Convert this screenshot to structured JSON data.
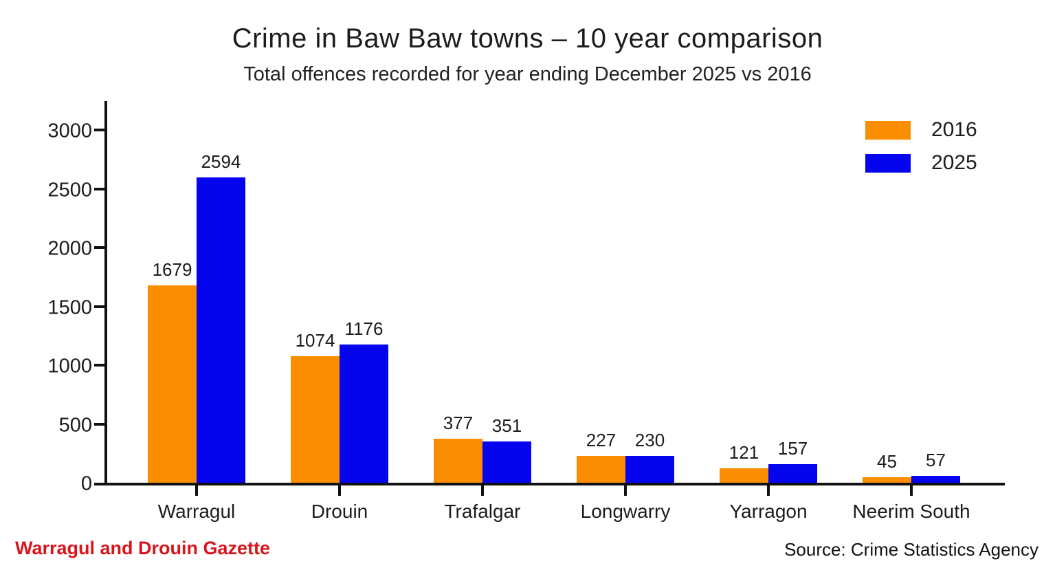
{
  "chart_data": {
    "type": "bar",
    "title": "Crime in Baw Baw towns – 10 year comparison",
    "subtitle": "Total offences recorded for year ending December 2025 vs 2016",
    "categories": [
      "Warragul",
      "Drouin",
      "Trafalgar",
      "Longwarry",
      "Yarragon",
      "Neerim South"
    ],
    "series": [
      {
        "name": "2016",
        "color": "#FA8D00",
        "values": [
          1679,
          1074,
          377,
          227,
          121,
          45
        ]
      },
      {
        "name": "2025",
        "color": "#0404EE",
        "values": [
          2594,
          1176,
          351,
          230,
          157,
          57
        ]
      }
    ],
    "y_ticks": [
      0,
      500,
      1000,
      1500,
      2000,
      2500,
      3000
    ],
    "ylim": [
      0,
      3246
    ],
    "xlabel": "",
    "ylabel": "",
    "grid": false,
    "legend_position": "top-right",
    "bar_value_labels": true
  },
  "footer": {
    "credit": "Warragul and Drouin Gazette",
    "credit_color": "#D8151B",
    "source": "Source: Crime Statistics Agency"
  }
}
